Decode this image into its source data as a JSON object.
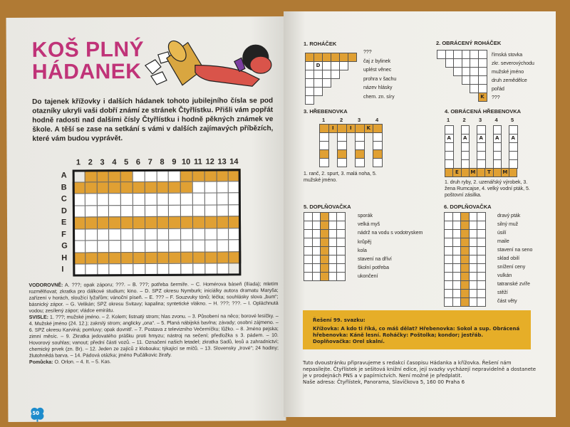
{
  "left_page": {
    "title_line1": "KOŠ PLNÝ",
    "title_line2": "HÁDANEK",
    "intro": "Do tajenek křížovky i dalších hádanek tohoto jubilejního čísla se pod otazníky ukryli vaši dobří známí ze stránek Čtyřlístku. Přišli vám popřát hodně radosti nad dalšími čísly Čtyřlístku i hodně pěkných známek ve škole. A těší se zase na setkání s vámi v dalších zajímavých příbězích, které vám budou vyprávět.",
    "crossword": {
      "columns": [
        "1",
        "2",
        "3",
        "4",
        "5",
        "6",
        "7",
        "8",
        "9",
        "10",
        "11",
        "12",
        "13",
        "14"
      ],
      "rows": [
        "A",
        "B",
        "C",
        "D",
        "E",
        "F",
        "G",
        "H",
        "I"
      ],
      "pattern": [
        "-OOOOWWWWOOOOO",
        "OOOOOOOOOOWWWW",
        "WWWWWWWWWWWWWW",
        "WWWWWWWWWWWWWW",
        "OOOOOOOOOOOOOO",
        "WWWWWWWWWWWWWW",
        "WWWWWWWWWWWWWW",
        "OOOOOOOOOOOOOO",
        "WWWWWWWWWWWWW-"
      ]
    },
    "across_label": "VODOROVNĚ:",
    "across": "A. ???; opak záporu; ???. – B. ???; potřeba šermíře. – C. Homérova báseň (Ilíada); mletím rozmělňovat; zkratka pro dálkové studium; kino. – D. SPZ okresu Nymburk; iniciálky autora dramatu Maryša; zařízení v horách, sloužící lyžařům; vánoční píseň. – E. ??? – F. Souzvuky tónů; léčka; souhlásky slova „bum“; básnický zápor. – G. Velikán; SPZ okresu Svitavy; kapalina; syntetické vlákno. – H. ???; ???. – I. Opláchnutá vodou; zesílený zápor; vládce emirátu.",
    "down_label": "SVISLE:",
    "down": "1. ???; mužské jméno. – 2. Kolem; listnatý strom; hlas zvonu. – 3. Působení na něco; borové lesíčky. – 4. Mužské jméno (24. 12.); zakrslý strom; anglicky „ona“. – 5. Planá nábijská bavlna; závady; osobní zájmeno. – 6. SPZ okresu Karviná; pomluvy; opak dovnitř. – 7. Postava z televizního Večerníčku; lůžko. – 8. Jméno pejska; zimní měsíc. – 9. Zkratka jedovatého prášku proti hmyzu; nástroj na sečení; předložka s 3. pádem. – 10. Hovorový souhlas; vanout; přední části vozů. – 11. Označení našich letadel; zkratka Sadů, lesů a zahradnictví; chemický prvek (zn. Br). – 12. Jeden ze zajíců z klobouku; týkající se míčů. – 13. Slovensky „Irové“; 24 hodiny; žlutohnědá barva. – 14. Pádová otázka; jméno Pučálkovic žirafy.",
    "hint_label": "Pomůcka:",
    "hint": "O. Orlon. – 4. It. – 5. Kas.",
    "page_number": "50"
  },
  "right_page": {
    "p1": {
      "title": "1. ROHÁČEK",
      "letters": [
        "D"
      ],
      "clues": [
        "???",
        "čaj z bylinek",
        "uplést věnec",
        "prohra v šachu",
        "název hlásky",
        "chem. zn. síry"
      ]
    },
    "p2": {
      "title": "2. OBRÁCENÝ ROHÁČEK",
      "letters": [
        "K"
      ],
      "clues": [
        "římská stovka",
        "zkr. severovýchodu",
        "mužské jméno",
        "druh zemědělce",
        "pořád",
        "???"
      ]
    },
    "p3": {
      "title": "3. HŘEBENOVKA",
      "numbers": [
        "1",
        "2",
        "3",
        "4"
      ],
      "letters": [
        "I",
        "I",
        "K"
      ],
      "clue_text": "1. ranč, 2. spurt, 3. malá noha, 5. mužské jméno."
    },
    "p4": {
      "title": "4. OBRÁCENÁ HŘEBENOVKA",
      "numbers": [
        "1",
        "2",
        "3",
        "4",
        "5"
      ],
      "top_letter": "A",
      "letters": [
        "E",
        "M",
        "T",
        "M",
        "U"
      ],
      "clue_text": "1. druh ryby, 2. uzenářský výrobek, 3. žena Rumcajse, 4. velký vodní pták, 5. poštovní zásilka."
    },
    "p5": {
      "title": "5. DOPLŇOVAČKA",
      "clues": [
        "sporák",
        "velká myš",
        "nádrž na vodu s vodotryskem",
        "krůpěj",
        "kola",
        "stavení na dříví",
        "školní potřeba",
        "ukončení"
      ]
    },
    "p6": {
      "title": "6. DOPLŇOVAČKA",
      "clues": [
        "dravý pták",
        "silný muž",
        "úsilí",
        "maile",
        "stavení na seno",
        "sklad obilí",
        "snížení ceny",
        "vulkán",
        "tatranské zvíře",
        "stěží",
        "část věty"
      ]
    },
    "solution": {
      "heading": "Řešení 99. svazku:",
      "text": "Křížovka: A kdo ti říká, co máš dělat? Hřebenovka: Sokol a sup. Obrácená hřebenovka: Káně lesní. Roháčky: Poštolka; kondor; jestřáb. Doplňovačka: Orel skalní."
    },
    "footer": "Tuto dvoustránku připravujeme s redakcí časopisu Hádanka a křížovka. Řešení nám nepasílejte. Čtyřlístek je sešitová knižní edice, její svazky vycházejí nepravidelně a dostanete je v prodejnách PNS a v papírnictvích. Není možné je předplatit.",
    "address": "Naše adresa: Čtyřlístek, Panorama, Slavíčkova 5, 160 00 Praha 6"
  },
  "colors": {
    "title": "#c03378",
    "orange": "#e0a033",
    "solution_box": "#e6ae28",
    "clover": "#1e8ccc",
    "wood": "#b07a34"
  }
}
